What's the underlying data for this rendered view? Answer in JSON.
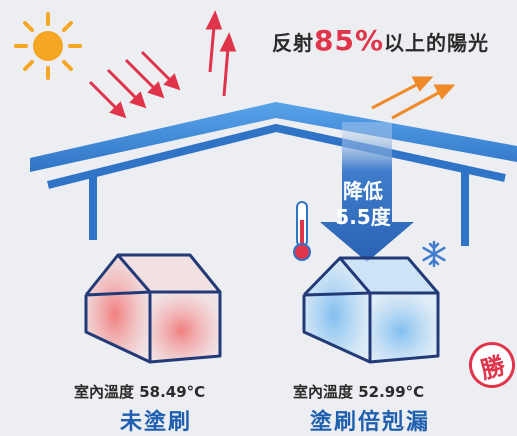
{
  "headline": {
    "prefix": "反射",
    "percent": "85%",
    "suffix": "以上的陽光"
  },
  "reduction": {
    "line1": "降低",
    "line2": "5.5度"
  },
  "houses": {
    "left": {
      "temp_label": "室內溫度 58.49°C",
      "status": "未塗刷"
    },
    "right": {
      "temp_label": "室內溫度 52.99°C",
      "status": "塗刷倍剋漏"
    }
  },
  "badge": "勝",
  "colors": {
    "roof": "#2f74c6",
    "sun": "#f5a623",
    "sun_rays": "#e0344b",
    "reflect_rays": "#f08a28",
    "status_text": "#1f5fb0",
    "badge": "#e0344b"
  },
  "icons": [
    "sun-icon",
    "thermometer-icon",
    "snowflake-icon"
  ]
}
